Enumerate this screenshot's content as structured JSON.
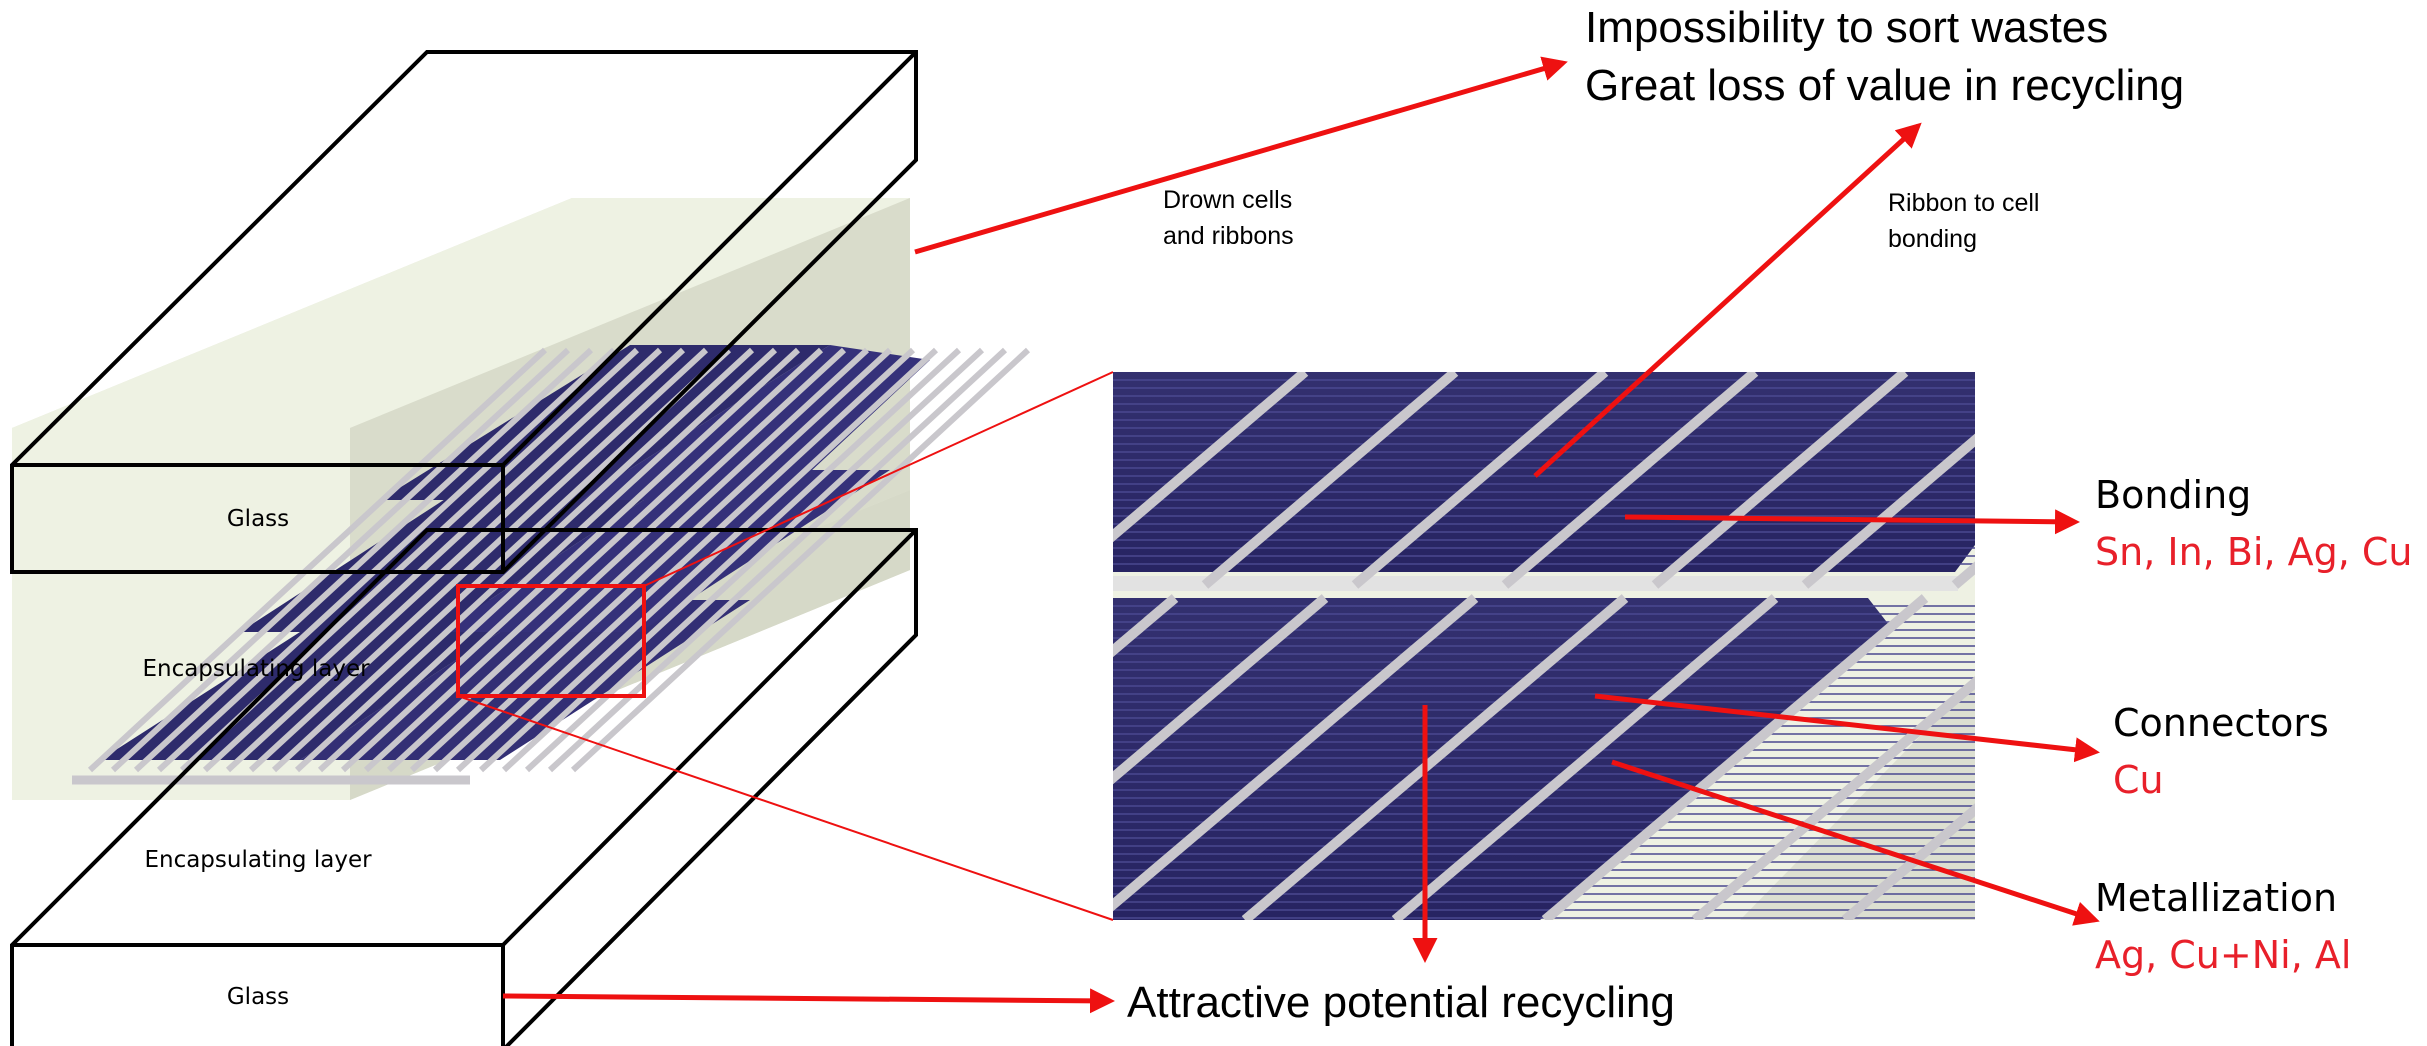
{
  "layers": {
    "glass_top": "Glass",
    "encap_top": "Encapsulating layer",
    "encap_bottom": "Encapsulating layer",
    "glass_bottom": "Glass"
  },
  "annotations": {
    "waste_line1": "Impossibility to sort wastes",
    "waste_line2": "Great loss of value in recycling",
    "drown_line1": "Drown cells",
    "drown_line2": "and ribbons",
    "ribbon_line1": "Ribbon to cell",
    "ribbon_line2": "bonding",
    "recycling": "Attractive potential recycling"
  },
  "materials": {
    "bonding_title": "Bonding",
    "bonding_items": "Sn, In, Bi, Ag, Cu",
    "connectors_title": "Connectors",
    "connectors_items": "Cu",
    "metallization_title": "Metallization",
    "metallization_items": "Ag, Cu+Ni, Al"
  },
  "colors": {
    "arrow": "#ee1111",
    "highlight_text": "#e8202a",
    "encapsulant": "#eef2e2",
    "cell": "#2d2b6e",
    "ribbon": "#c9c7cc"
  }
}
